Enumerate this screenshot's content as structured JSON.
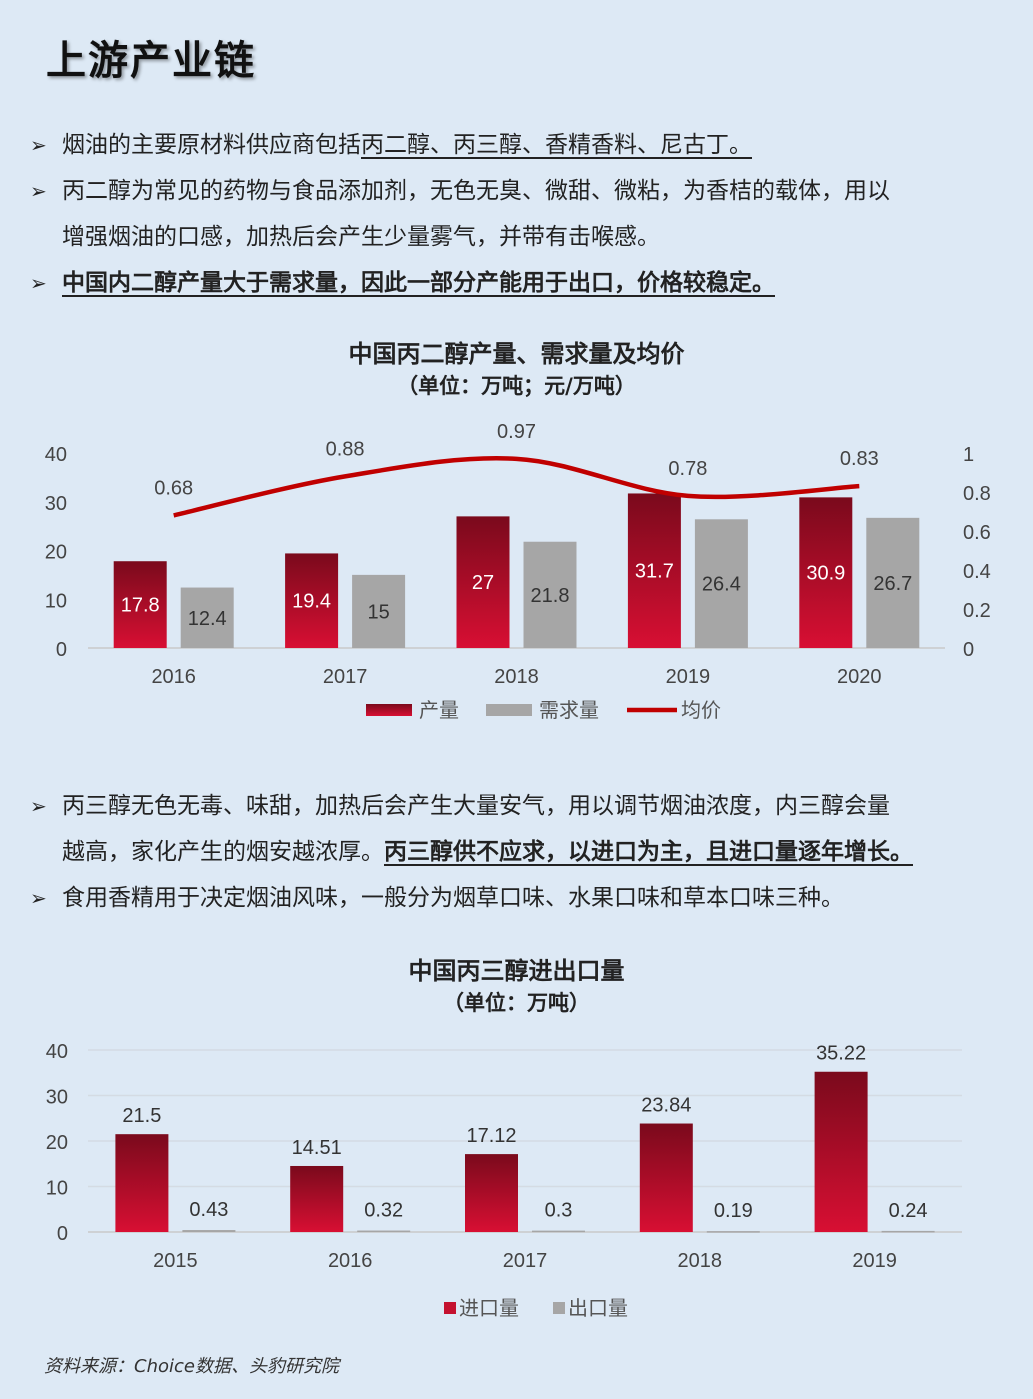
{
  "page": {
    "title": "上游产业链",
    "source": "资料来源：Choice数据、头豹研究院"
  },
  "section1": {
    "b1_prefix": "烟油的主要原材料供应商包括",
    "b1_underlined": "丙二醇、丙三醇、香精香料、尼古丁。",
    "b2_line1": "丙二醇为常见的药物与食品添加剂，无色无臭、微甜、微粘，为香桔的载体，用以",
    "b2_line2": "增强烟油的口感，加热后会产生少量雾气，并带有击喉感。",
    "b3": "中国内二醇产量大于需求量，因此一部分产能用于出口，价格较稳定。"
  },
  "section2": {
    "b1_line1": "丙三醇无色无毒、味甜，加热后会产生大量安气，用以调节烟油浓度，内三醇会量",
    "b1_line2_prefix": "越高，家化产生的烟安越浓厚。",
    "b1_line2_underlined": "丙三醇供不应求，以进口为主，且进口量逐年增长。",
    "b2": "食用香精用于决定烟油风味，一般分为烟草口味、水果口味和草本口味三种。"
  },
  "chart_data": [
    {
      "type": "bar",
      "title": "中国丙二醇产量、需求量及均价",
      "subtitle": "（单位：万吨；元/万吨）",
      "categories": [
        "2016",
        "2017",
        "2018",
        "2019",
        "2020"
      ],
      "series": [
        {
          "name": "产量",
          "type": "bar",
          "values": [
            17.8,
            19.4,
            27,
            31.7,
            30.9
          ],
          "color": "#c4112f"
        },
        {
          "name": "需求量",
          "type": "bar",
          "values": [
            12.4,
            15,
            21.8,
            26.4,
            26.7
          ],
          "color": "#a6a6a6"
        },
        {
          "name": "均价",
          "type": "line",
          "axis": "right",
          "values": [
            0.68,
            0.88,
            0.97,
            0.78,
            0.83
          ],
          "color": "#c00000"
        }
      ],
      "ylim": [
        0,
        40
      ],
      "yticks": [
        "0",
        "10",
        "20",
        "30",
        "40"
      ],
      "y2lim": [
        0,
        1
      ],
      "y2ticks": [
        "0",
        "0.2",
        "0.4",
        "0.6",
        "0.8",
        "1"
      ],
      "grid": false,
      "legend": "bottom"
    },
    {
      "type": "bar",
      "title": "中国丙三醇进出口量",
      "subtitle": "（单位：万吨）",
      "categories": [
        "2015",
        "2016",
        "2017",
        "2018",
        "2019"
      ],
      "series": [
        {
          "name": "进口量",
          "values": [
            21.5,
            14.51,
            17.12,
            23.84,
            35.22
          ],
          "color": "#c4112f"
        },
        {
          "name": "出口量",
          "values": [
            0.43,
            0.32,
            0.3,
            0.19,
            0.24
          ],
          "color": "#a6a6a6"
        }
      ],
      "ylim": [
        0,
        40
      ],
      "yticks": [
        "0",
        "10",
        "20",
        "30",
        "40"
      ],
      "grid": true,
      "legend": "bottom"
    }
  ]
}
